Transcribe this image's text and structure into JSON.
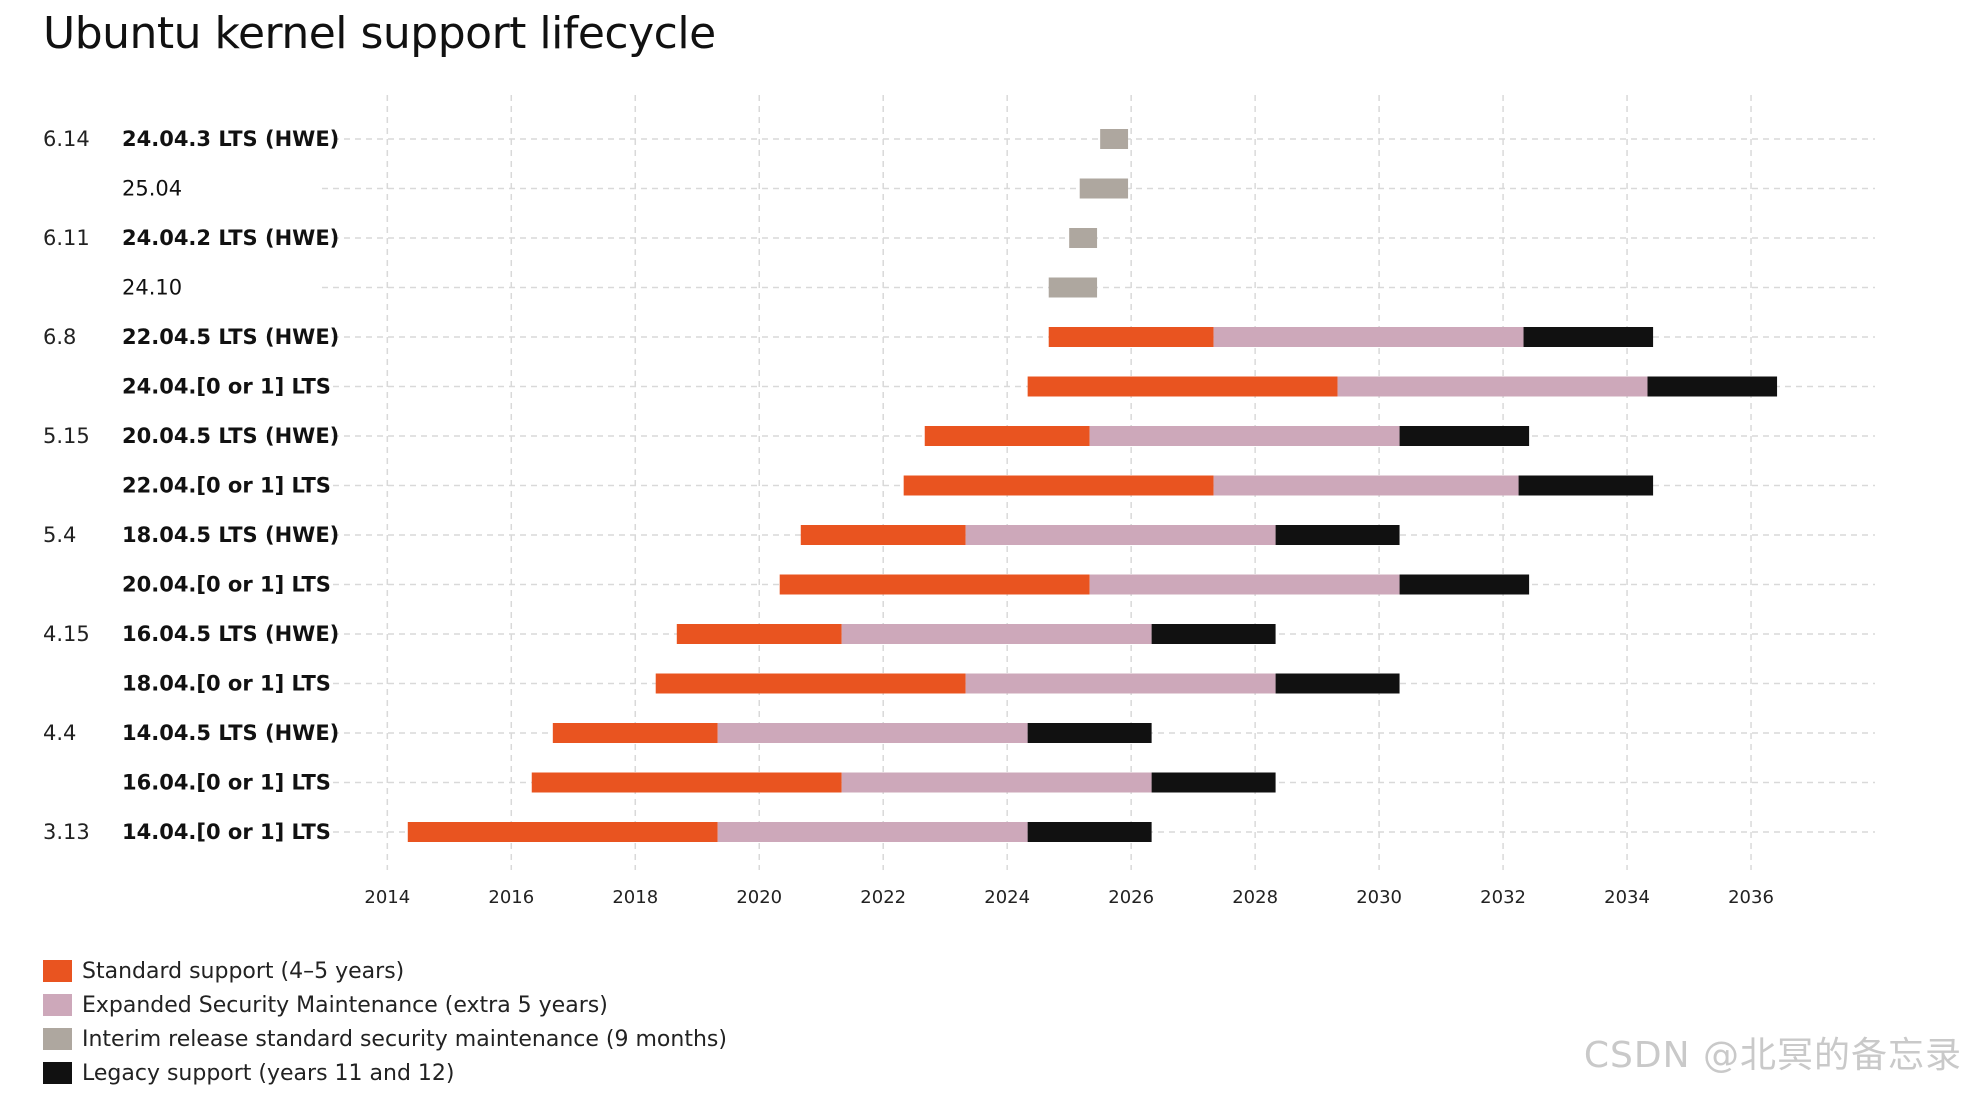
{
  "chart_data": {
    "type": "gantt",
    "title": "Ubuntu kernel support lifecycle",
    "xlim": [
      2013.64,
      2038.0
    ],
    "x_ticks": [
      2014,
      2016,
      2018,
      2020,
      2022,
      2024,
      2026,
      2028,
      2030,
      2032,
      2034,
      2036
    ],
    "grid": true,
    "colors": {
      "standard": "#E95420",
      "esm": "#CDA8BA",
      "interim": "#AEA79F",
      "legacy": "#111111"
    },
    "rows": [
      {
        "kernel": "6.14",
        "release": "24.04.3 LTS (HWE)",
        "lts": true,
        "segments": [
          {
            "kind": "interim",
            "start": 2025.5,
            "end": 2025.95
          }
        ]
      },
      {
        "kernel": "",
        "release": "25.04",
        "lts": false,
        "segments": [
          {
            "kind": "interim",
            "start": 2025.17,
            "end": 2025.95
          }
        ]
      },
      {
        "kernel": "6.11",
        "release": "24.04.2 LTS (HWE)",
        "lts": true,
        "segments": [
          {
            "kind": "interim",
            "start": 2025.0,
            "end": 2025.45
          }
        ]
      },
      {
        "kernel": "",
        "release": "24.10",
        "lts": false,
        "segments": [
          {
            "kind": "interim",
            "start": 2024.67,
            "end": 2025.45
          }
        ]
      },
      {
        "kernel": "6.8",
        "release": "22.04.5 LTS (HWE)",
        "lts": true,
        "segments": [
          {
            "kind": "standard",
            "start": 2024.67,
            "end": 2027.33
          },
          {
            "kind": "esm",
            "start": 2027.33,
            "end": 2032.33
          },
          {
            "kind": "legacy",
            "start": 2032.33,
            "end": 2034.42
          }
        ]
      },
      {
        "kernel": "",
        "release": "24.04.[0 or 1] LTS",
        "lts": true,
        "segments": [
          {
            "kind": "standard",
            "start": 2024.33,
            "end": 2029.33
          },
          {
            "kind": "esm",
            "start": 2029.33,
            "end": 2034.33
          },
          {
            "kind": "legacy",
            "start": 2034.33,
            "end": 2036.42
          }
        ]
      },
      {
        "kernel": "5.15",
        "release": "20.04.5 LTS (HWE)",
        "lts": true,
        "segments": [
          {
            "kind": "standard",
            "start": 2022.67,
            "end": 2025.33
          },
          {
            "kind": "esm",
            "start": 2025.33,
            "end": 2030.33
          },
          {
            "kind": "legacy",
            "start": 2030.33,
            "end": 2032.42
          }
        ]
      },
      {
        "kernel": "",
        "release": "22.04.[0 or 1] LTS",
        "lts": true,
        "segments": [
          {
            "kind": "standard",
            "start": 2022.33,
            "end": 2027.33
          },
          {
            "kind": "esm",
            "start": 2027.33,
            "end": 2032.25
          },
          {
            "kind": "legacy",
            "start": 2032.25,
            "end": 2034.42
          }
        ]
      },
      {
        "kernel": "5.4",
        "release": "18.04.5 LTS (HWE)",
        "lts": true,
        "segments": [
          {
            "kind": "standard",
            "start": 2020.67,
            "end": 2023.33
          },
          {
            "kind": "esm",
            "start": 2023.33,
            "end": 2028.33
          },
          {
            "kind": "legacy",
            "start": 2028.33,
            "end": 2030.33
          }
        ]
      },
      {
        "kernel": "",
        "release": "20.04.[0 or 1] LTS",
        "lts": true,
        "segments": [
          {
            "kind": "standard",
            "start": 2020.33,
            "end": 2025.33
          },
          {
            "kind": "esm",
            "start": 2025.33,
            "end": 2030.33
          },
          {
            "kind": "legacy",
            "start": 2030.33,
            "end": 2032.42
          }
        ]
      },
      {
        "kernel": "4.15",
        "release": "16.04.5 LTS (HWE)",
        "lts": true,
        "segments": [
          {
            "kind": "standard",
            "start": 2018.67,
            "end": 2021.33
          },
          {
            "kind": "esm",
            "start": 2021.33,
            "end": 2026.33
          },
          {
            "kind": "legacy",
            "start": 2026.33,
            "end": 2028.33
          }
        ]
      },
      {
        "kernel": "",
        "release": "18.04.[0 or 1] LTS",
        "lts": true,
        "segments": [
          {
            "kind": "standard",
            "start": 2018.33,
            "end": 2023.33
          },
          {
            "kind": "esm",
            "start": 2023.33,
            "end": 2028.33
          },
          {
            "kind": "legacy",
            "start": 2028.33,
            "end": 2030.33
          }
        ]
      },
      {
        "kernel": "4.4",
        "release": "14.04.5 LTS (HWE)",
        "lts": true,
        "segments": [
          {
            "kind": "standard",
            "start": 2016.67,
            "end": 2019.33
          },
          {
            "kind": "esm",
            "start": 2019.33,
            "end": 2024.33
          },
          {
            "kind": "legacy",
            "start": 2024.33,
            "end": 2026.33
          }
        ]
      },
      {
        "kernel": "",
        "release": "16.04.[0 or 1] LTS",
        "lts": true,
        "segments": [
          {
            "kind": "standard",
            "start": 2016.33,
            "end": 2021.33
          },
          {
            "kind": "esm",
            "start": 2021.33,
            "end": 2026.33
          },
          {
            "kind": "legacy",
            "start": 2026.33,
            "end": 2028.33
          }
        ]
      },
      {
        "kernel": "3.13",
        "release": "14.04.[0 or 1] LTS",
        "lts": true,
        "segments": [
          {
            "kind": "standard",
            "start": 2014.33,
            "end": 2019.33
          },
          {
            "kind": "esm",
            "start": 2019.33,
            "end": 2024.33
          },
          {
            "kind": "legacy",
            "start": 2024.33,
            "end": 2026.33
          }
        ]
      }
    ],
    "legend": [
      {
        "kind": "standard",
        "label": "Standard support (4–5 years)"
      },
      {
        "kind": "esm",
        "label": "Expanded Security Maintenance (extra 5 years)"
      },
      {
        "kind": "interim",
        "label": "Interim release standard security maintenance (9 months)"
      },
      {
        "kind": "legacy",
        "label": "Legacy support (years 11 and 12)"
      }
    ]
  },
  "watermark": "CSDN @北冥的备忘录"
}
